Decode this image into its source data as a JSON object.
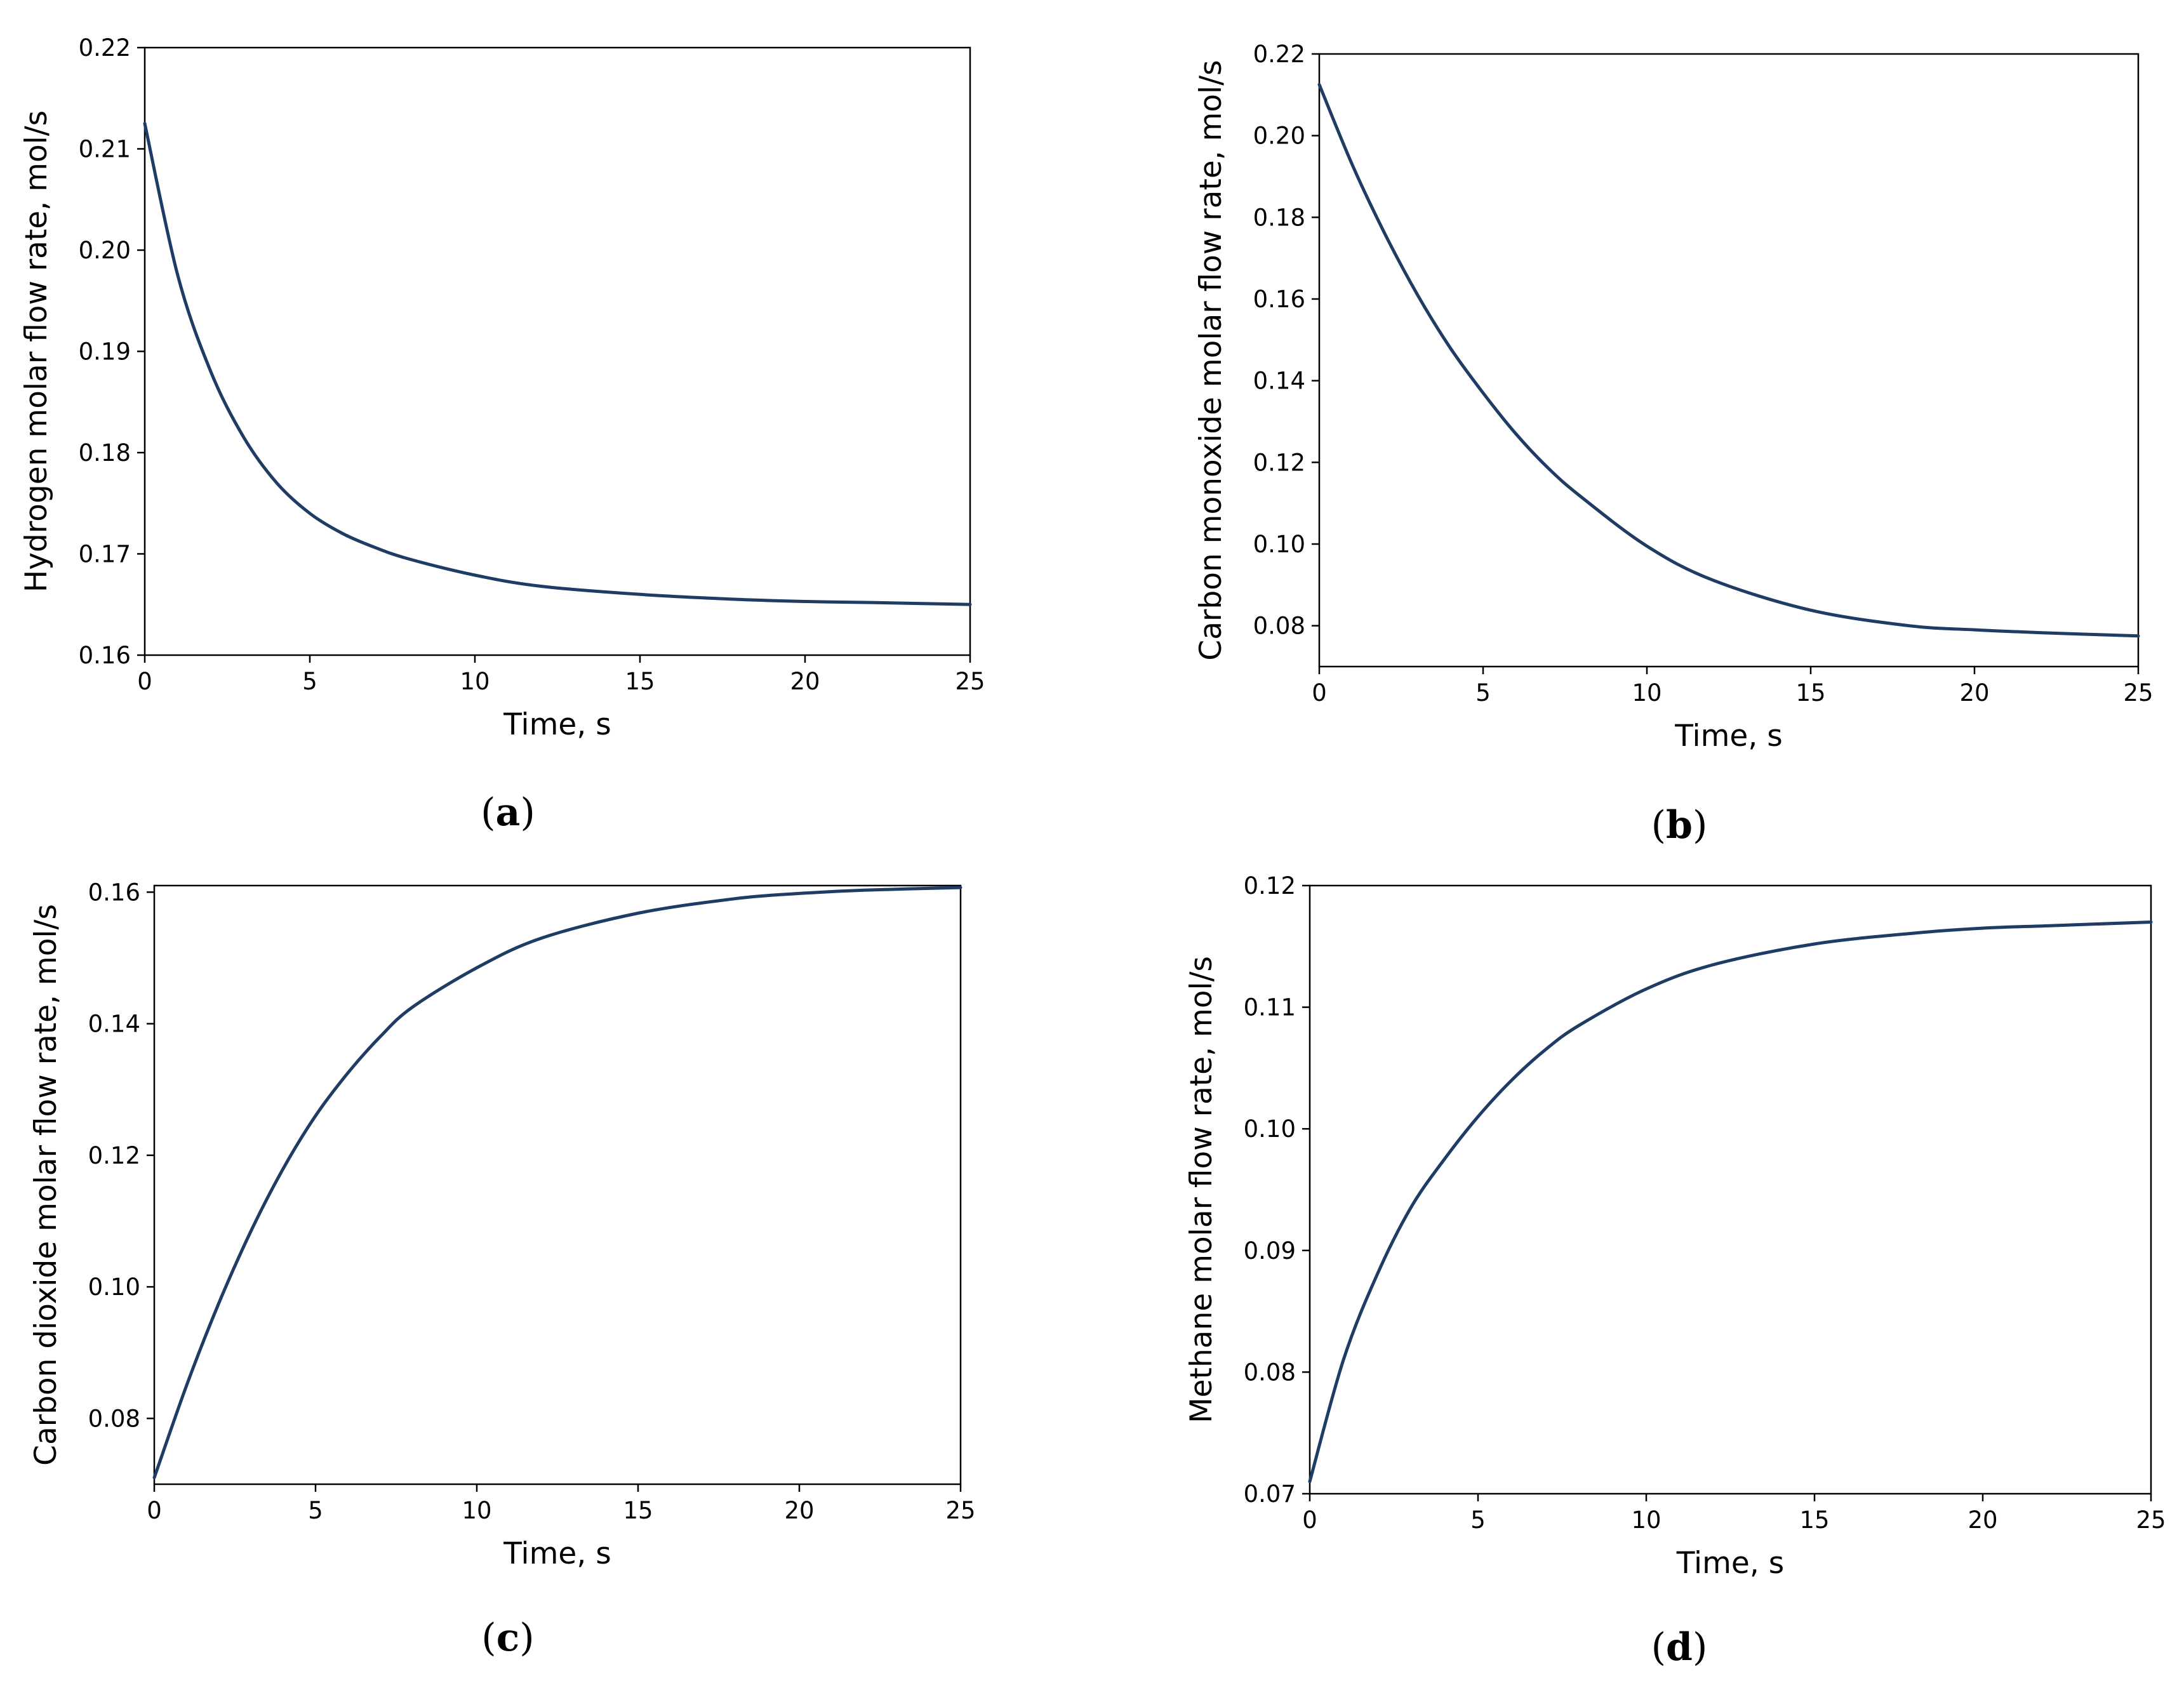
{
  "chart_data": [
    {
      "type": "line",
      "caption_letter": "a",
      "xlabel": "Time, s",
      "ylabel": "Hydrogen molar flow rate, mol/s",
      "xlim": [
        0,
        25
      ],
      "ylim": [
        0.16,
        0.22
      ],
      "xticks": [
        0,
        5,
        10,
        15,
        20,
        25
      ],
      "xtick_labels": [
        "0",
        "5",
        "10",
        "15",
        "20",
        "25"
      ],
      "yticks": [
        0.16,
        0.17,
        0.18,
        0.19,
        0.2,
        0.21,
        0.22
      ],
      "ytick_labels": [
        "0.16",
        "0.17",
        "0.18",
        "0.19",
        "0.20",
        "0.21",
        "0.22"
      ],
      "grid": false,
      "line_color": "#1f3c64",
      "series": [
        {
          "x": [
            0,
            1,
            2,
            3,
            4,
            5,
            6,
            7,
            8,
            10,
            12,
            15,
            18,
            20,
            22,
            25
          ],
          "values": [
            0.2125,
            0.1975,
            0.188,
            0.1815,
            0.177,
            0.174,
            0.172,
            0.1706,
            0.1695,
            0.1679,
            0.1668,
            0.166,
            0.1655,
            0.1653,
            0.1652,
            0.165
          ]
        }
      ]
    },
    {
      "type": "line",
      "caption_letter": "b",
      "xlabel": "Time, s",
      "ylabel": "Carbon monoxide molar flow rate, mol/s",
      "xlim": [
        0,
        25
      ],
      "ylim": [
        0.07,
        0.22
      ],
      "xticks": [
        0,
        5,
        10,
        15,
        20,
        25
      ],
      "xtick_labels": [
        "0",
        "5",
        "10",
        "15",
        "20",
        "25"
      ],
      "yticks": [
        0.08,
        0.1,
        0.12,
        0.14,
        0.16,
        0.18,
        0.2,
        0.22
      ],
      "ytick_labels": [
        "0.08",
        "0.10",
        "0.12",
        "0.14",
        "0.16",
        "0.18",
        "0.20",
        "0.22"
      ],
      "grid": false,
      "line_color": "#1f3c64",
      "series": [
        {
          "x": [
            0,
            1,
            2,
            3,
            4,
            5,
            6,
            7,
            8,
            10,
            12,
            15,
            18,
            20,
            22,
            25
          ],
          "values": [
            0.2125,
            0.193,
            0.176,
            0.161,
            0.148,
            0.137,
            0.127,
            0.1185,
            0.1115,
            0.0995,
            0.0912,
            0.0838,
            0.08,
            0.079,
            0.0783,
            0.0775
          ]
        }
      ]
    },
    {
      "type": "line",
      "caption_letter": "c",
      "xlabel": "Time, s",
      "ylabel": "Carbon dioxide molar flow rate, mol/s",
      "xlim": [
        0,
        25
      ],
      "ylim": [
        0.07,
        0.161
      ],
      "xticks": [
        0,
        5,
        10,
        15,
        20,
        25
      ],
      "xtick_labels": [
        "0",
        "5",
        "10",
        "15",
        "20",
        "25"
      ],
      "yticks": [
        0.08,
        0.1,
        0.12,
        0.14,
        0.16
      ],
      "ytick_labels": [
        "0.08",
        "0.10",
        "0.12",
        "0.14",
        "0.16"
      ],
      "grid": false,
      "line_color": "#1f3c64",
      "series": [
        {
          "x": [
            0,
            1,
            2,
            3,
            4,
            5,
            6,
            7,
            8,
            10,
            12,
            15,
            18,
            20,
            22,
            25
          ],
          "values": [
            0.071,
            0.085,
            0.0975,
            0.1085,
            0.118,
            0.126,
            0.1325,
            0.138,
            0.1425,
            0.1485,
            0.153,
            0.1568,
            0.159,
            0.1598,
            0.1603,
            0.1607
          ]
        }
      ]
    },
    {
      "type": "line",
      "caption_letter": "d",
      "xlabel": "Time, s",
      "ylabel": "Methane molar flow rate, mol/s",
      "xlim": [
        0,
        25
      ],
      "ylim": [
        0.07,
        0.12
      ],
      "xticks": [
        0,
        5,
        10,
        15,
        20,
        25
      ],
      "xtick_labels": [
        "0",
        "5",
        "10",
        "15",
        "20",
        "25"
      ],
      "yticks": [
        0.07,
        0.08,
        0.09,
        0.1,
        0.11,
        0.12
      ],
      "ytick_labels": [
        "0.07",
        "0.08",
        "0.09",
        "0.10",
        "0.11",
        "0.12"
      ],
      "grid": false,
      "line_color": "#1f3c64",
      "series": [
        {
          "x": [
            0,
            1,
            2,
            3,
            4,
            5,
            6,
            7,
            8,
            10,
            12,
            15,
            18,
            20,
            22,
            25
          ],
          "values": [
            0.071,
            0.081,
            0.088,
            0.0935,
            0.0975,
            0.101,
            0.104,
            0.1065,
            0.1085,
            0.1115,
            0.1135,
            0.1152,
            0.1161,
            0.1165,
            0.1167,
            0.117
          ]
        }
      ]
    }
  ]
}
